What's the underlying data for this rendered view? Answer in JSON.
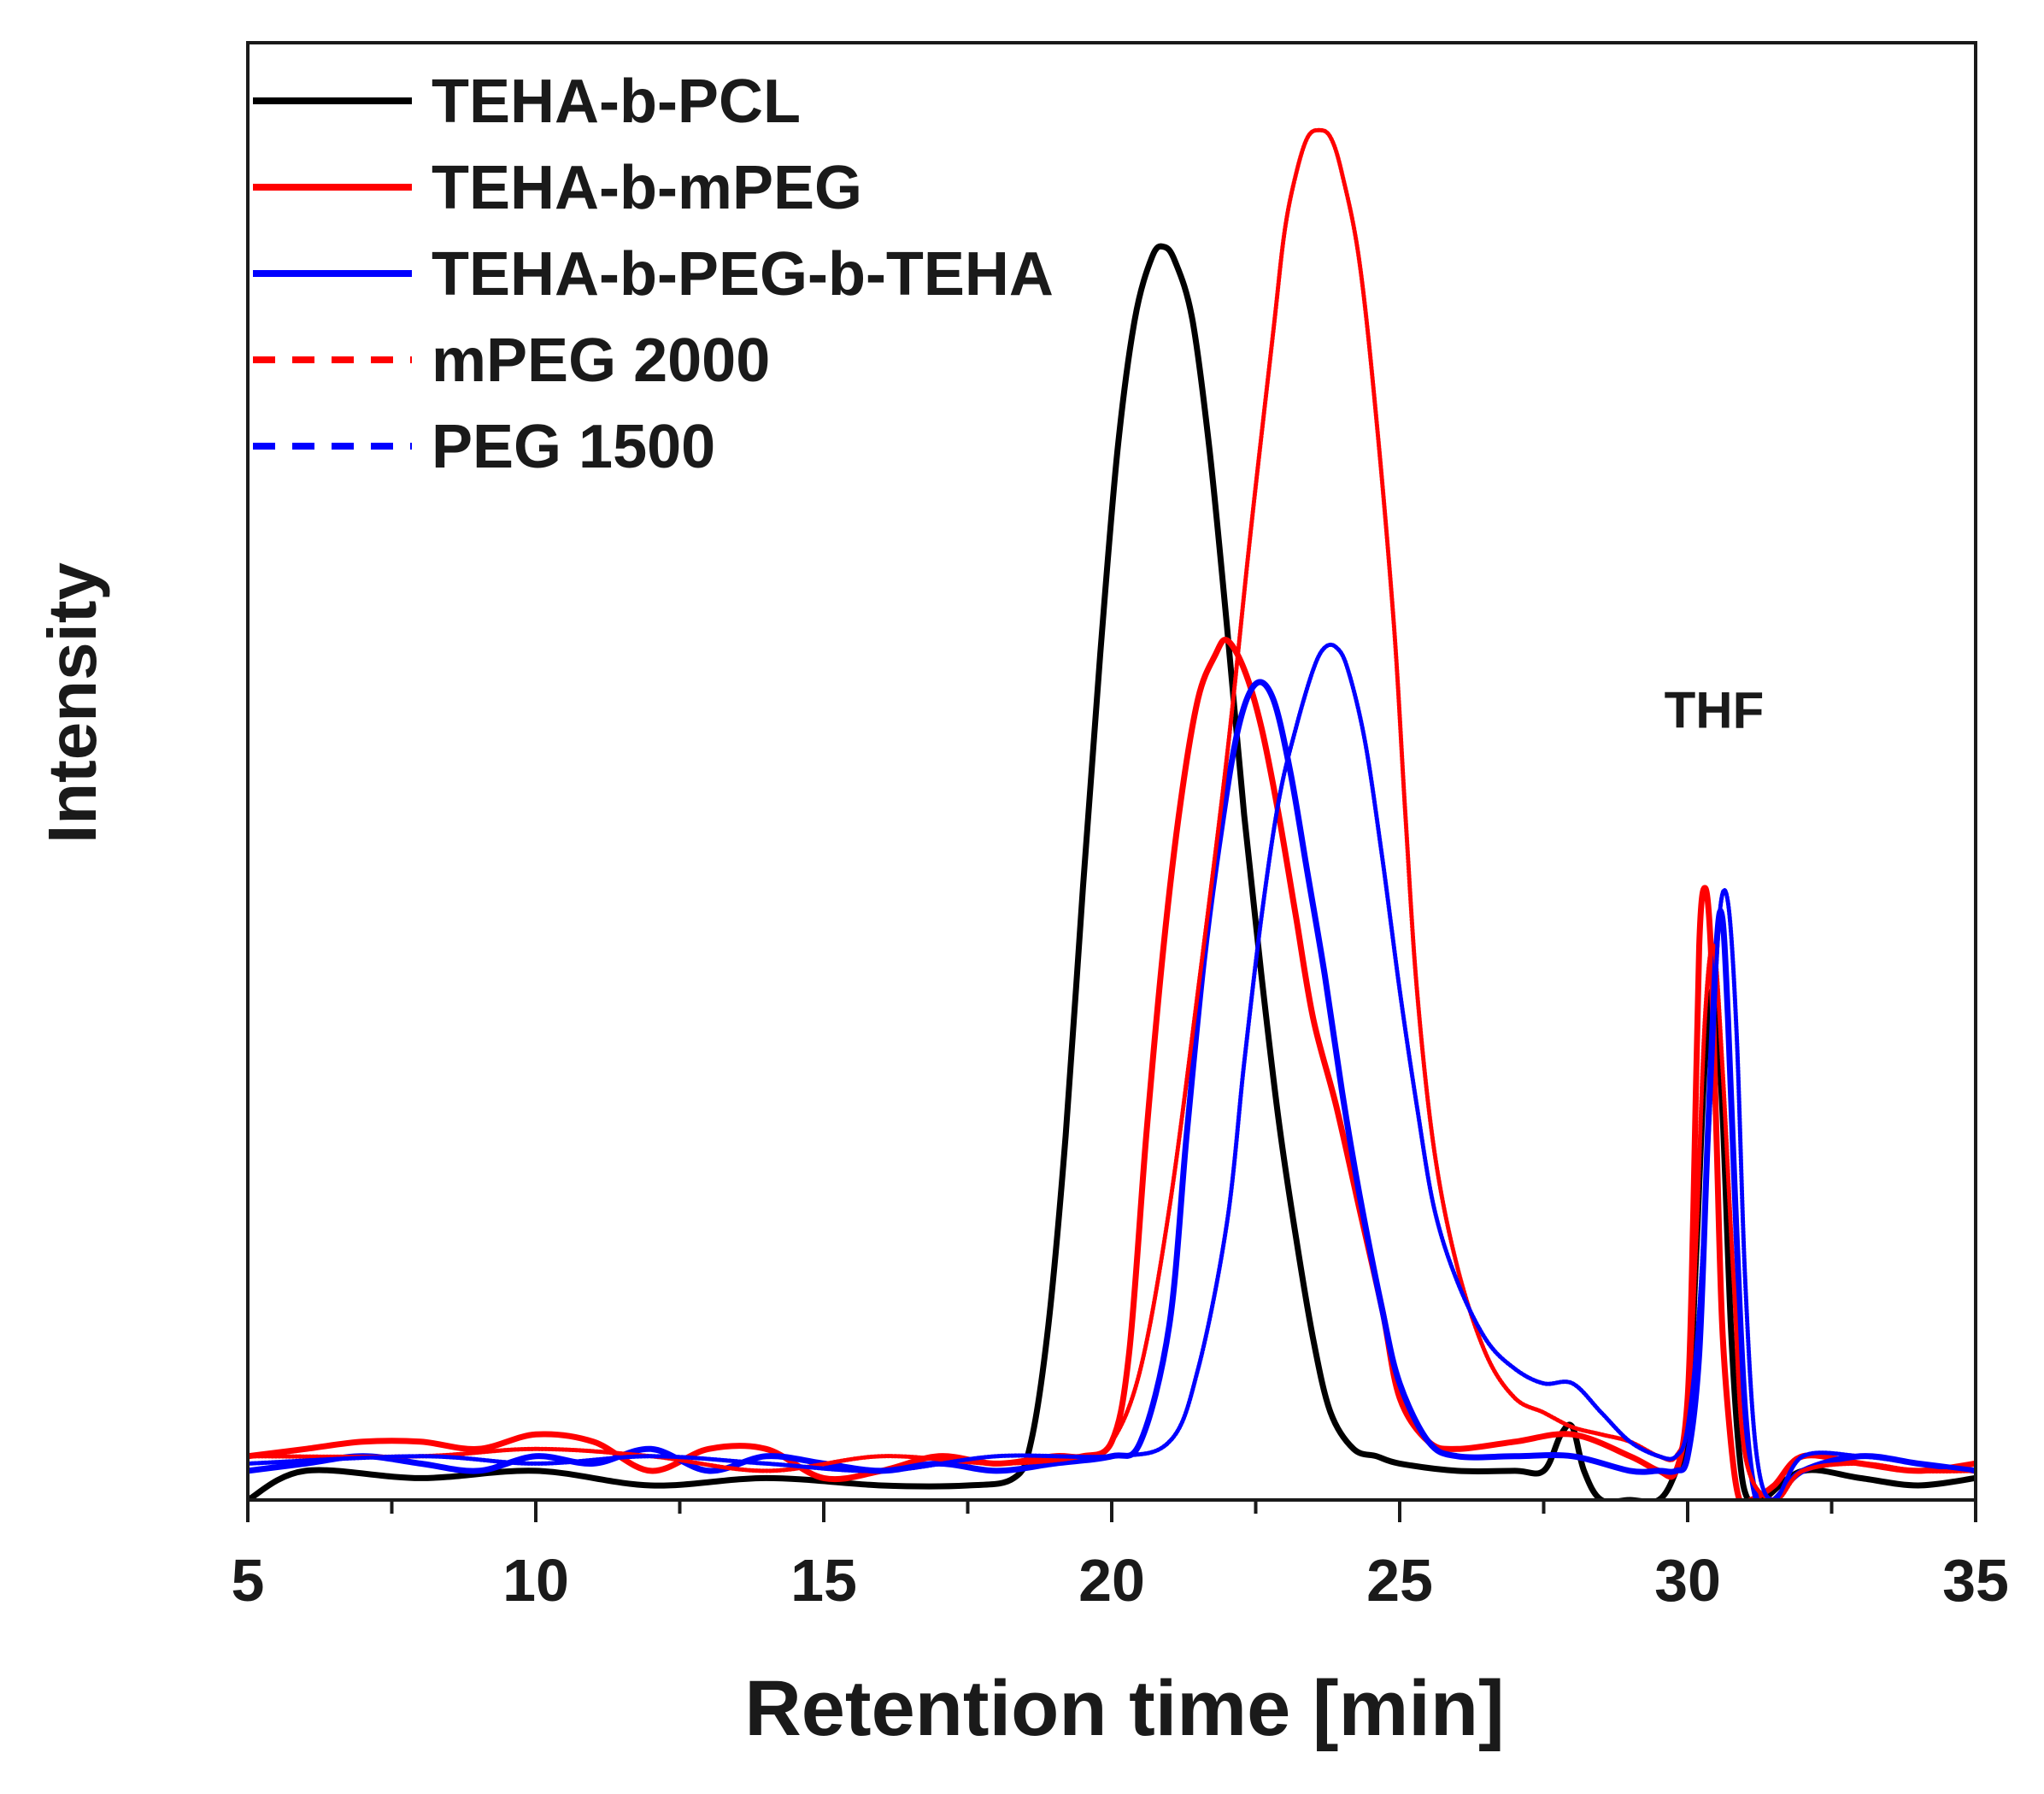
{
  "chart_data": {
    "type": "line",
    "title": "",
    "xlabel": "Retention time [min]",
    "ylabel": "Intensity",
    "xlim": [
      5,
      35
    ],
    "ylim": [
      0,
      1.0
    ],
    "xticks": [
      5,
      10,
      15,
      20,
      25,
      30,
      35
    ],
    "yticks_shown": false,
    "grid": false,
    "legend_position": "top-left",
    "annotations": [
      {
        "text": "THF",
        "x": 30.4,
        "y": 0.53
      }
    ],
    "series": [
      {
        "name": "TEHA-b-PCL",
        "color": "#000000",
        "dash": "solid",
        "x": [
          5.0,
          6.0,
          8.0,
          10.0,
          12.0,
          14.0,
          16.0,
          17.5,
          18.3,
          18.6,
          18.9,
          19.2,
          19.5,
          19.8,
          20.1,
          20.4,
          20.7,
          20.9,
          21.1,
          21.4,
          21.7,
          22.0,
          22.3,
          22.6,
          22.9,
          23.2,
          23.5,
          23.8,
          24.2,
          24.6,
          25.0,
          26.0,
          27.0,
          27.5,
          27.8,
          28.0,
          28.2,
          28.5,
          29.0,
          29.5,
          29.8,
          30.0,
          30.15,
          30.3,
          30.45,
          30.6,
          30.75,
          30.9,
          31.05,
          31.3,
          32.0,
          33.0,
          34.0,
          35.0
        ],
        "y": [
          0.0,
          0.02,
          0.015,
          0.02,
          0.01,
          0.015,
          0.01,
          0.01,
          0.015,
          0.04,
          0.12,
          0.25,
          0.42,
          0.58,
          0.72,
          0.81,
          0.853,
          0.86,
          0.85,
          0.81,
          0.72,
          0.6,
          0.47,
          0.36,
          0.26,
          0.18,
          0.11,
          0.06,
          0.035,
          0.03,
          0.025,
          0.02,
          0.02,
          0.02,
          0.045,
          0.05,
          0.02,
          0.0,
          0.0,
          0.0,
          0.02,
          0.05,
          0.17,
          0.3,
          0.35,
          0.27,
          0.12,
          0.03,
          0.0,
          0.0,
          0.02,
          0.015,
          0.01,
          0.015
        ]
      },
      {
        "name": "TEHA-b-mPEG",
        "color": "#ff0000",
        "dash": "solid",
        "x": [
          5.0,
          6.0,
          7.0,
          8.0,
          9.0,
          10.0,
          11.0,
          12.0,
          13.0,
          14.0,
          15.0,
          16.0,
          17.0,
          18.0,
          19.0,
          19.5,
          20.0,
          20.3,
          20.6,
          20.9,
          21.2,
          21.5,
          21.8,
          22.0,
          22.3,
          22.6,
          22.9,
          23.2,
          23.5,
          23.9,
          24.3,
          24.7,
          25.0,
          25.5,
          26.0,
          27.0,
          28.0,
          29.0,
          29.5,
          29.8,
          30.0,
          30.1,
          30.2,
          30.3,
          30.4,
          30.5,
          30.6,
          30.75,
          30.9,
          31.1,
          31.5,
          32.0,
          33.0,
          34.0,
          35.0
        ],
        "y": [
          0.03,
          0.035,
          0.04,
          0.04,
          0.035,
          0.045,
          0.04,
          0.02,
          0.035,
          0.035,
          0.015,
          0.02,
          0.03,
          0.025,
          0.03,
          0.03,
          0.04,
          0.1,
          0.25,
          0.38,
          0.48,
          0.55,
          0.58,
          0.59,
          0.57,
          0.53,
          0.47,
          0.4,
          0.33,
          0.27,
          0.2,
          0.13,
          0.07,
          0.04,
          0.035,
          0.04,
          0.045,
          0.03,
          0.02,
          0.02,
          0.07,
          0.2,
          0.38,
          0.42,
          0.38,
          0.25,
          0.12,
          0.04,
          0.0,
          0.0,
          0.01,
          0.03,
          0.025,
          0.02,
          0.025
        ]
      },
      {
        "name": "TEHA-b-PEG-b-TEHA",
        "color": "#0000ff",
        "dash": "solid",
        "x": [
          5.0,
          6.0,
          7.0,
          8.0,
          9.0,
          10.0,
          11.0,
          12.0,
          13.0,
          14.0,
          15.0,
          16.0,
          17.0,
          18.0,
          19.0,
          20.0,
          20.5,
          21.0,
          21.3,
          21.6,
          21.9,
          22.2,
          22.5,
          22.8,
          23.1,
          23.4,
          23.7,
          24.0,
          24.3,
          24.7,
          25.0,
          25.5,
          26.0,
          27.0,
          28.0,
          29.0,
          29.5,
          29.8,
          30.0,
          30.2,
          30.35,
          30.5,
          30.6,
          30.7,
          30.85,
          31.0,
          31.2,
          31.5,
          32.0,
          33.0,
          34.0,
          35.0
        ],
        "y": [
          0.02,
          0.025,
          0.03,
          0.025,
          0.02,
          0.03,
          0.025,
          0.035,
          0.02,
          0.03,
          0.025,
          0.02,
          0.025,
          0.02,
          0.025,
          0.03,
          0.04,
          0.12,
          0.25,
          0.37,
          0.46,
          0.53,
          0.56,
          0.55,
          0.5,
          0.43,
          0.36,
          0.28,
          0.21,
          0.13,
          0.08,
          0.04,
          0.03,
          0.03,
          0.03,
          0.02,
          0.02,
          0.02,
          0.03,
          0.1,
          0.25,
          0.38,
          0.4,
          0.33,
          0.18,
          0.06,
          0.0,
          0.0,
          0.02,
          0.03,
          0.025,
          0.02
        ]
      },
      {
        "name": "mPEG 2000",
        "color": "#ff0000",
        "dash": "dashed",
        "x": [
          5.0,
          8.0,
          10.0,
          12.0,
          14.0,
          16.0,
          18.0,
          19.5,
          20.0,
          20.5,
          21.0,
          21.5,
          22.0,
          22.4,
          22.8,
          23.0,
          23.2,
          23.4,
          23.6,
          23.8,
          24.0,
          24.3,
          24.6,
          24.9,
          25.1,
          25.3,
          25.6,
          26.0,
          26.5,
          27.0,
          27.5,
          28.0,
          28.5,
          29.0,
          29.5,
          29.8,
          30.0,
          30.15,
          30.3,
          30.45,
          30.6,
          30.8,
          31.0,
          31.5,
          32.0,
          33.0,
          34.0,
          35.0
        ],
        "y": [
          0.03,
          0.03,
          0.035,
          0.03,
          0.02,
          0.03,
          0.025,
          0.03,
          0.04,
          0.09,
          0.2,
          0.35,
          0.51,
          0.66,
          0.8,
          0.87,
          0.91,
          0.935,
          0.94,
          0.935,
          0.91,
          0.85,
          0.74,
          0.6,
          0.47,
          0.35,
          0.24,
          0.16,
          0.1,
          0.07,
          0.06,
          0.05,
          0.045,
          0.04,
          0.03,
          0.03,
          0.06,
          0.18,
          0.33,
          0.38,
          0.3,
          0.15,
          0.03,
          0.0,
          0.02,
          0.025,
          0.02,
          0.02
        ]
      },
      {
        "name": "PEG 1500",
        "color": "#0000ff",
        "dash": "dashed",
        "x": [
          5.0,
          8.0,
          10.0,
          12.0,
          14.0,
          16.0,
          18.0,
          20.0,
          21.0,
          21.5,
          22.0,
          22.3,
          22.6,
          22.9,
          23.2,
          23.5,
          23.7,
          23.9,
          24.1,
          24.4,
          24.7,
          25.0,
          25.3,
          25.6,
          26.0,
          26.5,
          27.0,
          27.5,
          28.0,
          28.5,
          29.0,
          29.5,
          29.8,
          30.0,
          30.2,
          30.4,
          30.55,
          30.7,
          30.85,
          31.0,
          31.2,
          31.5,
          32.0,
          33.0,
          34.0,
          35.0
        ],
        "y": [
          0.025,
          0.03,
          0.025,
          0.03,
          0.025,
          0.02,
          0.03,
          0.03,
          0.04,
          0.09,
          0.19,
          0.3,
          0.4,
          0.48,
          0.53,
          0.57,
          0.585,
          0.585,
          0.57,
          0.52,
          0.44,
          0.35,
          0.27,
          0.2,
          0.15,
          0.11,
          0.09,
          0.08,
          0.08,
          0.06,
          0.04,
          0.03,
          0.03,
          0.05,
          0.13,
          0.28,
          0.4,
          0.41,
          0.32,
          0.15,
          0.03,
          0.0,
          0.03,
          0.03,
          0.025,
          0.02
        ]
      }
    ]
  }
}
